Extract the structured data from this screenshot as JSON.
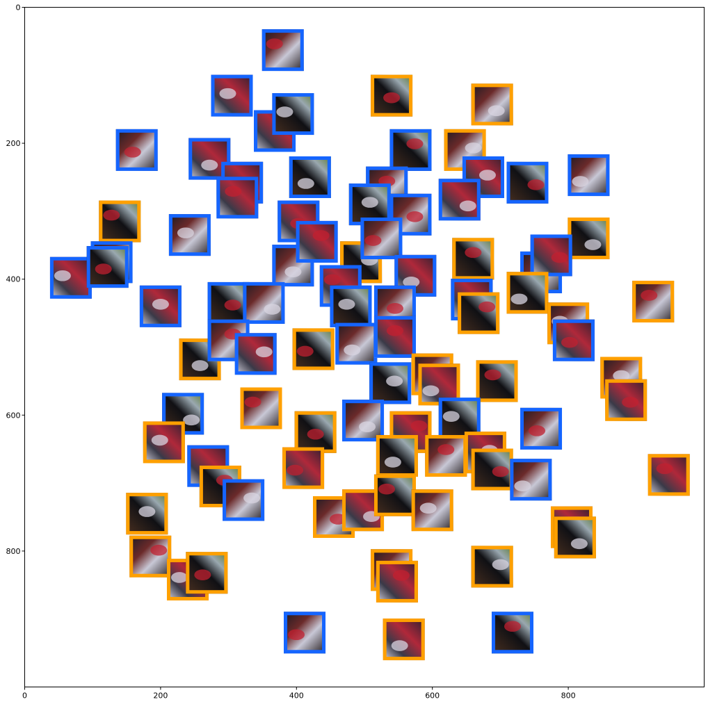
{
  "chart_data": {
    "type": "scatter",
    "title": "",
    "xlabel": "",
    "ylabel": "",
    "xlim": [
      0,
      1000
    ],
    "ylim": [
      1000,
      0
    ],
    "y_inverted": true,
    "grid": false,
    "x_ticks": [
      0,
      200,
      400,
      600,
      800
    ],
    "y_ticks": [
      0,
      200,
      400,
      600,
      800
    ],
    "colors": {
      "orange": "#ffa000",
      "blue": "#1565ff"
    },
    "points": [
      {
        "x": 380,
        "y": 63,
        "c": "blue"
      },
      {
        "x": 305,
        "y": 130,
        "c": "blue"
      },
      {
        "x": 540,
        "y": 130,
        "c": "orange"
      },
      {
        "x": 688,
        "y": 143,
        "c": "orange"
      },
      {
        "x": 368,
        "y": 182,
        "c": "blue"
      },
      {
        "x": 395,
        "y": 157,
        "c": "blue"
      },
      {
        "x": 165,
        "y": 210,
        "c": "blue"
      },
      {
        "x": 272,
        "y": 223,
        "c": "blue"
      },
      {
        "x": 568,
        "y": 210,
        "c": "blue"
      },
      {
        "x": 648,
        "y": 210,
        "c": "orange"
      },
      {
        "x": 320,
        "y": 258,
        "c": "blue"
      },
      {
        "x": 420,
        "y": 250,
        "c": "blue"
      },
      {
        "x": 533,
        "y": 265,
        "c": "blue"
      },
      {
        "x": 675,
        "y": 250,
        "c": "blue"
      },
      {
        "x": 740,
        "y": 258,
        "c": "blue"
      },
      {
        "x": 830,
        "y": 247,
        "c": "blue"
      },
      {
        "x": 313,
        "y": 280,
        "c": "blue"
      },
      {
        "x": 508,
        "y": 290,
        "c": "blue"
      },
      {
        "x": 568,
        "y": 305,
        "c": "blue"
      },
      {
        "x": 640,
        "y": 283,
        "c": "blue"
      },
      {
        "x": 140,
        "y": 315,
        "c": "orange"
      },
      {
        "x": 243,
        "y": 335,
        "c": "blue"
      },
      {
        "x": 403,
        "y": 315,
        "c": "blue"
      },
      {
        "x": 830,
        "y": 340,
        "c": "orange"
      },
      {
        "x": 128,
        "y": 375,
        "c": "blue"
      },
      {
        "x": 68,
        "y": 398,
        "c": "blue"
      },
      {
        "x": 122,
        "y": 382,
        "c": "blue"
      },
      {
        "x": 395,
        "y": 380,
        "c": "blue"
      },
      {
        "x": 430,
        "y": 345,
        "c": "blue"
      },
      {
        "x": 495,
        "y": 375,
        "c": "orange"
      },
      {
        "x": 525,
        "y": 340,
        "c": "blue"
      },
      {
        "x": 575,
        "y": 395,
        "c": "blue"
      },
      {
        "x": 660,
        "y": 370,
        "c": "orange"
      },
      {
        "x": 760,
        "y": 390,
        "c": "blue"
      },
      {
        "x": 775,
        "y": 365,
        "c": "blue"
      },
      {
        "x": 740,
        "y": 420,
        "c": "orange"
      },
      {
        "x": 925,
        "y": 433,
        "c": "orange"
      },
      {
        "x": 200,
        "y": 440,
        "c": "blue"
      },
      {
        "x": 300,
        "y": 435,
        "c": "blue"
      },
      {
        "x": 352,
        "y": 435,
        "c": "blue"
      },
      {
        "x": 465,
        "y": 410,
        "c": "blue"
      },
      {
        "x": 480,
        "y": 440,
        "c": "blue"
      },
      {
        "x": 545,
        "y": 440,
        "c": "blue"
      },
      {
        "x": 658,
        "y": 430,
        "c": "blue"
      },
      {
        "x": 668,
        "y": 450,
        "c": "orange"
      },
      {
        "x": 800,
        "y": 465,
        "c": "orange"
      },
      {
        "x": 808,
        "y": 490,
        "c": "blue"
      },
      {
        "x": 258,
        "y": 518,
        "c": "orange"
      },
      {
        "x": 300,
        "y": 490,
        "c": "blue"
      },
      {
        "x": 340,
        "y": 510,
        "c": "blue"
      },
      {
        "x": 425,
        "y": 503,
        "c": "orange"
      },
      {
        "x": 488,
        "y": 495,
        "c": "blue"
      },
      {
        "x": 545,
        "y": 485,
        "c": "blue"
      },
      {
        "x": 538,
        "y": 553,
        "c": "blue"
      },
      {
        "x": 600,
        "y": 540,
        "c": "orange"
      },
      {
        "x": 610,
        "y": 555,
        "c": "orange"
      },
      {
        "x": 695,
        "y": 550,
        "c": "orange"
      },
      {
        "x": 878,
        "y": 545,
        "c": "orange"
      },
      {
        "x": 885,
        "y": 578,
        "c": "orange"
      },
      {
        "x": 233,
        "y": 598,
        "c": "blue"
      },
      {
        "x": 348,
        "y": 590,
        "c": "orange"
      },
      {
        "x": 205,
        "y": 640,
        "c": "orange"
      },
      {
        "x": 428,
        "y": 625,
        "c": "orange"
      },
      {
        "x": 498,
        "y": 608,
        "c": "blue"
      },
      {
        "x": 568,
        "y": 625,
        "c": "orange"
      },
      {
        "x": 640,
        "y": 605,
        "c": "blue"
      },
      {
        "x": 760,
        "y": 620,
        "c": "blue"
      },
      {
        "x": 270,
        "y": 675,
        "c": "blue"
      },
      {
        "x": 288,
        "y": 705,
        "c": "orange"
      },
      {
        "x": 322,
        "y": 725,
        "c": "blue"
      },
      {
        "x": 410,
        "y": 678,
        "c": "orange"
      },
      {
        "x": 548,
        "y": 660,
        "c": "orange"
      },
      {
        "x": 620,
        "y": 660,
        "c": "orange"
      },
      {
        "x": 678,
        "y": 655,
        "c": "orange"
      },
      {
        "x": 688,
        "y": 680,
        "c": "orange"
      },
      {
        "x": 745,
        "y": 695,
        "c": "blue"
      },
      {
        "x": 948,
        "y": 688,
        "c": "orange"
      },
      {
        "x": 180,
        "y": 745,
        "c": "orange"
      },
      {
        "x": 455,
        "y": 750,
        "c": "orange"
      },
      {
        "x": 498,
        "y": 740,
        "c": "orange"
      },
      {
        "x": 545,
        "y": 718,
        "c": "orange"
      },
      {
        "x": 600,
        "y": 740,
        "c": "orange"
      },
      {
        "x": 805,
        "y": 765,
        "c": "orange"
      },
      {
        "x": 810,
        "y": 780,
        "c": "orange"
      },
      {
        "x": 185,
        "y": 808,
        "c": "orange"
      },
      {
        "x": 240,
        "y": 842,
        "c": "orange"
      },
      {
        "x": 268,
        "y": 832,
        "c": "orange"
      },
      {
        "x": 540,
        "y": 828,
        "c": "orange"
      },
      {
        "x": 548,
        "y": 845,
        "c": "orange"
      },
      {
        "x": 688,
        "y": 823,
        "c": "orange"
      },
      {
        "x": 412,
        "y": 920,
        "c": "blue"
      },
      {
        "x": 558,
        "y": 930,
        "c": "orange"
      },
      {
        "x": 718,
        "y": 920,
        "c": "blue"
      }
    ]
  }
}
